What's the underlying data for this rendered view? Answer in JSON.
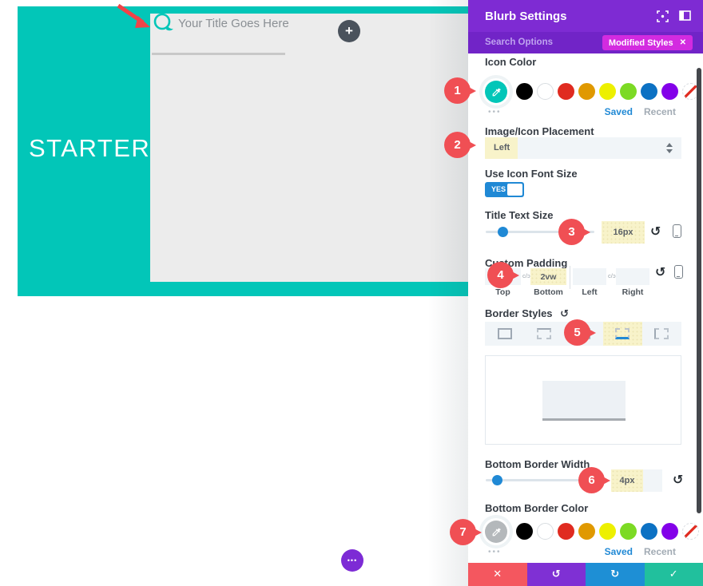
{
  "colors": {
    "teal_accent": "#02c6b8",
    "header_purple": "#7e2bd3",
    "search_purple": "#7124c7",
    "badge_magenta": "#d32be0",
    "accent_blue": "#2089d5",
    "highlight_yellow": "#f8f3ca",
    "marker_red": "#f04f54",
    "footer": {
      "discard": "#f4575f",
      "undo": "#7f30d4",
      "redo": "#1e8fd5",
      "save": "#21c09d"
    },
    "swatch_palette": [
      "#000000",
      "#ffffff",
      "#e02b20",
      "#e09900",
      "#edf000",
      "#7cda24",
      "#0c71c3",
      "#8300e9",
      "none"
    ]
  },
  "canvas": {
    "section_label": "STARTER",
    "blurb_title": "Your Title Goes Here",
    "add_button_glyph": "+",
    "dots_button_glyph": "•••"
  },
  "panel": {
    "title": "Blurb Settings",
    "search": {
      "placeholder": "Search Options"
    },
    "badge": {
      "label": "Modified Styles",
      "close_glyph": "✕"
    },
    "icon_color": {
      "label": "Icon Color",
      "selected_color": "#02c6b8",
      "more_glyph": "•••",
      "saved_label": "Saved",
      "recent_label": "Recent"
    },
    "placement": {
      "label": "Image/Icon Placement",
      "value": "Left"
    },
    "icon_font_size": {
      "label": "Use Icon Font Size",
      "value": "YES"
    },
    "title_text_size": {
      "label": "Title Text Size",
      "value": "16px"
    },
    "custom_padding": {
      "label": "Custom Padding",
      "link_glyph": "c/ɔ",
      "fields": [
        {
          "label": "Top",
          "value": ""
        },
        {
          "label": "Bottom",
          "value": "2vw"
        },
        {
          "label": "Left",
          "value": ""
        },
        {
          "label": "Right",
          "value": ""
        }
      ]
    },
    "border_styles": {
      "label": "Border Styles",
      "options": [
        "all",
        "top",
        "right",
        "bottom",
        "left"
      ],
      "selected": "bottom",
      "reset_glyph": "↺"
    },
    "bottom_border_width": {
      "label": "Bottom Border Width",
      "value": "4px"
    },
    "bottom_border_color": {
      "label": "Bottom Border Color",
      "selected_color": "#b4b8bb",
      "more_glyph": "•••",
      "saved_label": "Saved",
      "recent_label": "Recent"
    },
    "footer": {
      "buttons": [
        {
          "name": "discard",
          "glyph": "✕"
        },
        {
          "name": "undo",
          "glyph": "↺"
        },
        {
          "name": "redo",
          "glyph": "↻"
        },
        {
          "name": "save",
          "glyph": "✓"
        }
      ]
    },
    "reset_glyph": "↺"
  },
  "markers": [
    "1",
    "2",
    "3",
    "4",
    "5",
    "6",
    "7"
  ]
}
